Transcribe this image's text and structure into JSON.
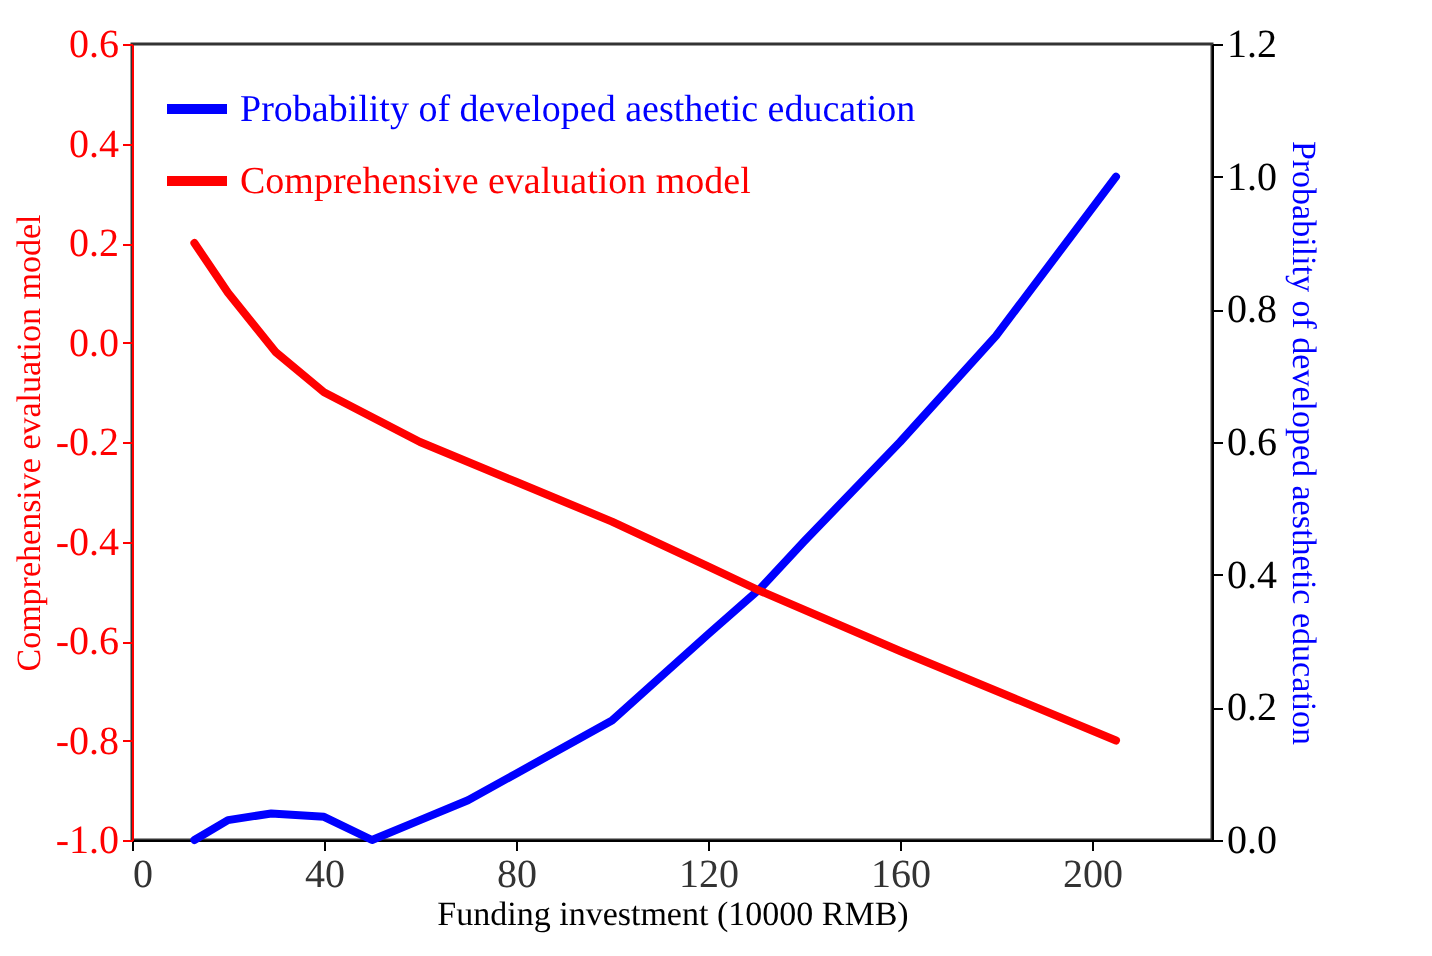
{
  "chart_data": {
    "type": "line",
    "xlabel": "Funding investment (10000 RMB)",
    "ylabel": "Comprehensive evaluation model",
    "y2label": "Probability of developed aesthetic education",
    "xlim": [
      0,
      225
    ],
    "xticks": [
      0,
      40,
      80,
      120,
      160,
      200
    ],
    "ylim": [
      -1.0,
      0.6
    ],
    "yticks": [
      {
        "value": -1.0,
        "label": "-1.0"
      },
      {
        "value": -0.8,
        "label": "-0.8"
      },
      {
        "value": -0.6,
        "label": "-0.6"
      },
      {
        "value": -0.4,
        "label": "-0.4"
      },
      {
        "value": -0.2,
        "label": "-0.2"
      },
      {
        "value": 0,
        "label": "0.0"
      },
      {
        "value": 0.2,
        "label": "0.2"
      },
      {
        "value": 0.4,
        "label": "0.4"
      },
      {
        "value": 0.6,
        "label": "0.6"
      }
    ],
    "y2lim": [
      0,
      1.2
    ],
    "y2ticks": [
      {
        "value": 0,
        "label": "0.0"
      },
      {
        "value": 0.2,
        "label": "0.2"
      },
      {
        "value": 0.4,
        "label": "0.4"
      },
      {
        "value": 0.6,
        "label": "0.6"
      },
      {
        "value": 0.8,
        "label": "0.8"
      },
      {
        "value": 1,
        "label": "1.0"
      },
      {
        "value": 1.2,
        "label": "1.2"
      }
    ],
    "legend": "top left",
    "grid": false,
    "marker": "none",
    "line_style": "solid",
    "series": [
      {
        "name": "Probability of developed aesthetic education",
        "color": "#0000ff",
        "axis": "y2",
        "x": [
          13,
          20,
          29,
          40,
          50,
          60,
          70,
          80,
          100,
          120,
          131,
          140,
          160,
          180,
          205
        ],
        "values": [
          0.0,
          0.03,
          0.04,
          0.035,
          0.0,
          0.03,
          0.06,
          0.1,
          0.18,
          0.31,
          0.38,
          0.45,
          0.6,
          0.76,
          1.0
        ]
      },
      {
        "name": "Comprehensive evaluation model",
        "color": "#ff0000",
        "x": [
          13,
          20,
          30,
          40,
          60,
          80,
          100,
          120,
          131,
          160,
          180,
          205
        ],
        "values": [
          0.2,
          0.1,
          -0.02,
          -0.1,
          -0.2,
          -0.28,
          -0.36,
          -0.45,
          -0.5,
          -0.62,
          -0.7,
          -0.8
        ]
      }
    ]
  }
}
